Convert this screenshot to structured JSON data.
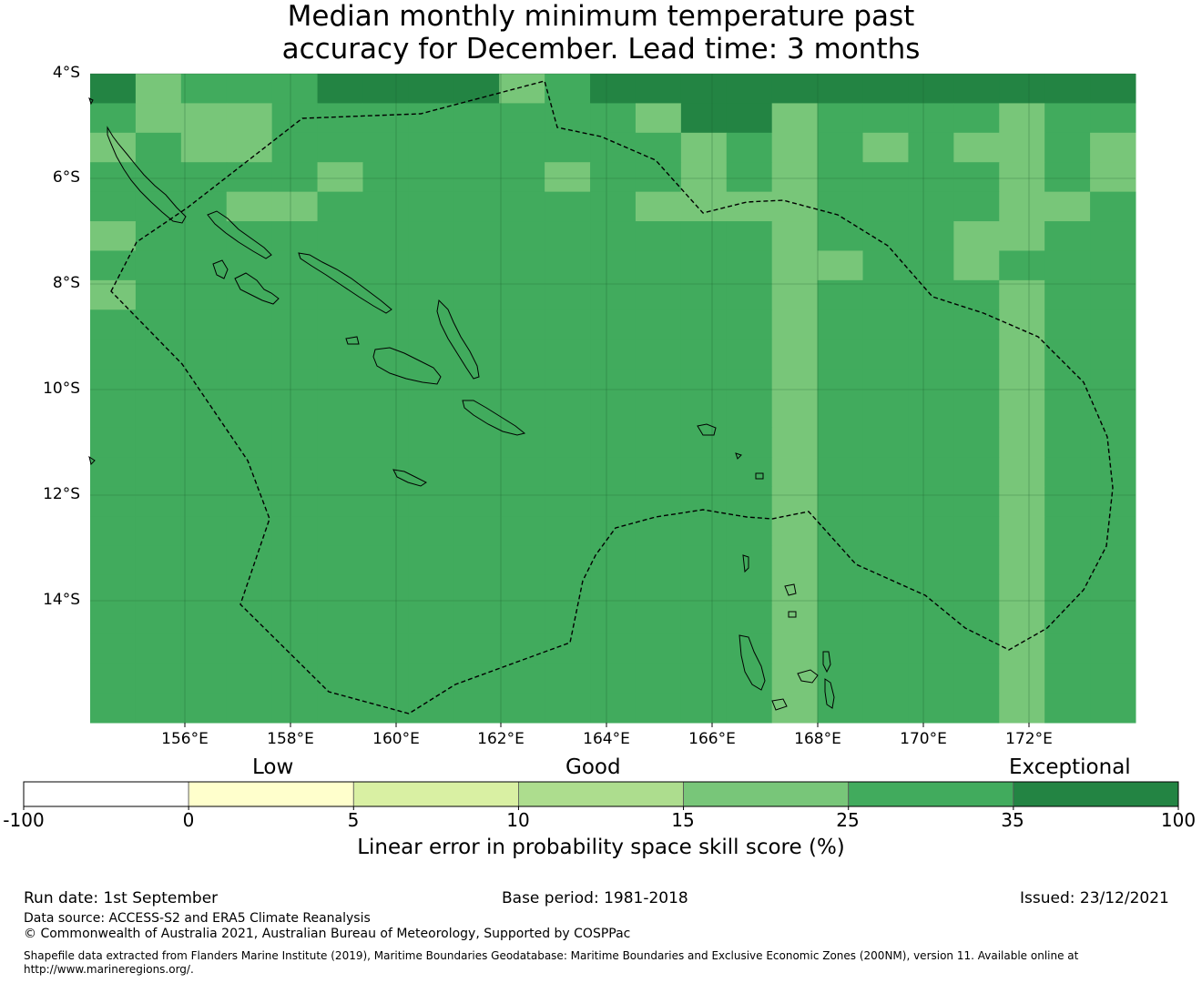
{
  "title": {
    "line1": "Median monthly minimum temperature past",
    "line2": "accuracy for December. Lead time: 3 months"
  },
  "map": {
    "lat_labels": [
      "4°S",
      "6°S",
      "8°S",
      "10°S",
      "12°S",
      "14°S"
    ],
    "lon_labels": [
      "156°E",
      "158°E",
      "160°E",
      "162°E",
      "164°E",
      "166°E",
      "168°E",
      "170°E",
      "172°E"
    ],
    "gridlines": true,
    "grid_rows": [
      "31222333312333333333333",
      "21112222222213312222122",
      "12112222222221212121121",
      "22222122221221212222121",
      "22211222222211112222112",
      "12222222222222212221122",
      "22222222222222211221222",
      "12222222222222212222122",
      "22222222222222212222122",
      "22222222222222212222122",
      "22222222222222212222122",
      "22222222222222212222122",
      "22222222222222212222122",
      "22222222222222212222122",
      "22222222222222212222122",
      "22222222222222212222122",
      "22222222222222212222122",
      "22222222222222212222122",
      "22222222222222212222122",
      "22222222222222212222122",
      "22222222222222212222122",
      "22222222222222212222122"
    ]
  },
  "colorbar": {
    "words": [
      "Low",
      "Good",
      "Exceptional"
    ],
    "ticks": [
      "-100",
      "0",
      "5",
      "10",
      "15",
      "25",
      "35",
      "100"
    ],
    "colors": [
      "#ffffff",
      "#ffffcc",
      "#d9f0a3",
      "#addd8e",
      "#78c679",
      "#41ab5d",
      "#238443"
    ],
    "label": "Linear error in probability space skill score (%)"
  },
  "footer": {
    "run_date": "Run date: 1st September",
    "base_period": "Base period: 1981-2018",
    "issued": "Issued: 23/12/2021",
    "data_source": "Data source: ACCESS-S2 and ERA5 Climate Reanalysis",
    "copyright": "© Commonwealth of Australia 2021, Australian Bureau of Meteorology, Supported by COSPPac",
    "shapefile_line1": "Shapefile data extracted from Flanders Marine Institute (2019), Maritime Boundaries Geodatabase: Maritime Boundaries and Exclusive Economic Zones (200NM), version 11. Available online at",
    "shapefile_line2": "http://www.marineregions.org/."
  }
}
